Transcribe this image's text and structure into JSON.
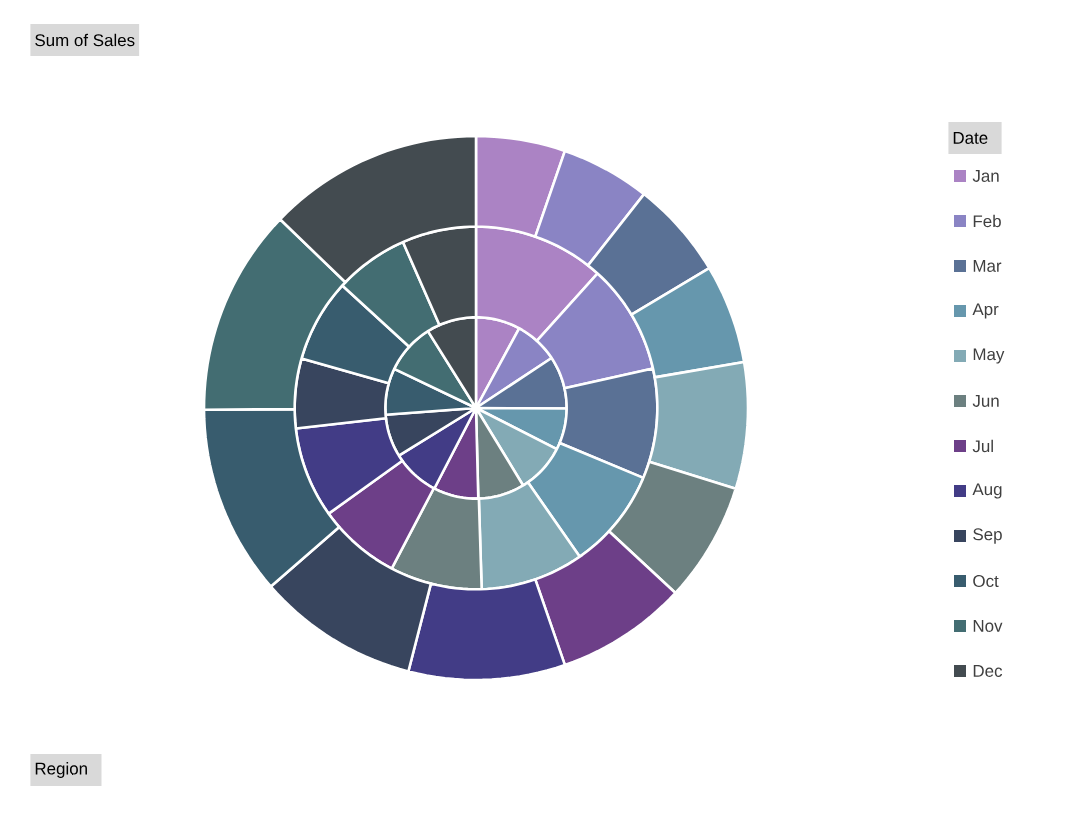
{
  "chart_data": {
    "type": "pie",
    "title": "Sum of Sales",
    "legend_title": "Date",
    "legend": "right",
    "annotations": [
      "Region"
    ],
    "categories": [
      "Jan",
      "Feb",
      "Mar",
      "Apr",
      "May",
      "Jun",
      "Jul",
      "Aug",
      "Sep",
      "Oct",
      "Nov",
      "Dec"
    ],
    "colors": [
      "#ab83c4",
      "#8a84c4",
      "#5a7195",
      "#6697ad",
      "#83aab5",
      "#6c8080",
      "#6d3f88",
      "#423c86",
      "#38455e",
      "#385c6e",
      "#436d72",
      "#434b50"
    ],
    "series": [
      {
        "values": [
          7.9,
          7.8,
          9.4,
          7.4,
          8.8,
          8.3,
          8.0,
          8.6,
          7.6,
          8.3,
          9.0,
          8.9
        ]
      },
      {
        "values": [
          11.7,
          9.8,
          9.8,
          9.0,
          9.2,
          8.2,
          7.4,
          8.1,
          6.2,
          7.4,
          6.6,
          6.6
        ]
      },
      {
        "values": [
          5.3,
          5.3,
          5.8,
          5.9,
          7.5,
          7.1,
          7.8,
          9.3,
          9.6,
          11.3,
          12.3,
          12.8
        ]
      }
    ]
  }
}
